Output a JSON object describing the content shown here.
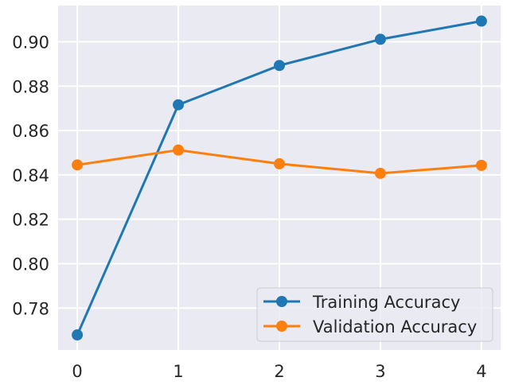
{
  "chart_data": {
    "type": "line",
    "title": "",
    "xlabel": "",
    "ylabel": "",
    "x": [
      0,
      1,
      2,
      3,
      4
    ],
    "series": [
      {
        "name": "Training Accuracy",
        "color": "#1f77b4",
        "marker": "circle",
        "values": [
          0.7679,
          0.8716,
          0.8893,
          0.9011,
          0.9093
        ]
      },
      {
        "name": "Validation Accuracy",
        "color": "#ff7f0e",
        "marker": "circle",
        "values": [
          0.8445,
          0.8512,
          0.845,
          0.8407,
          0.8443
        ]
      }
    ],
    "xticks": [
      "0",
      "1",
      "2",
      "3",
      "4"
    ],
    "yticks": [
      "0.78",
      "0.80",
      "0.82",
      "0.84",
      "0.86",
      "0.88",
      "0.90"
    ],
    "ytick_values": [
      0.78,
      0.8,
      0.82,
      0.84,
      0.86,
      0.88,
      0.9
    ],
    "xlim": [
      -0.19,
      4.19
    ],
    "ylim": [
      0.7611,
      0.9163
    ],
    "grid": true,
    "legend_position": "lower right",
    "style": {
      "background": "#eaeaf2",
      "grid_color": "#ffffff"
    }
  }
}
